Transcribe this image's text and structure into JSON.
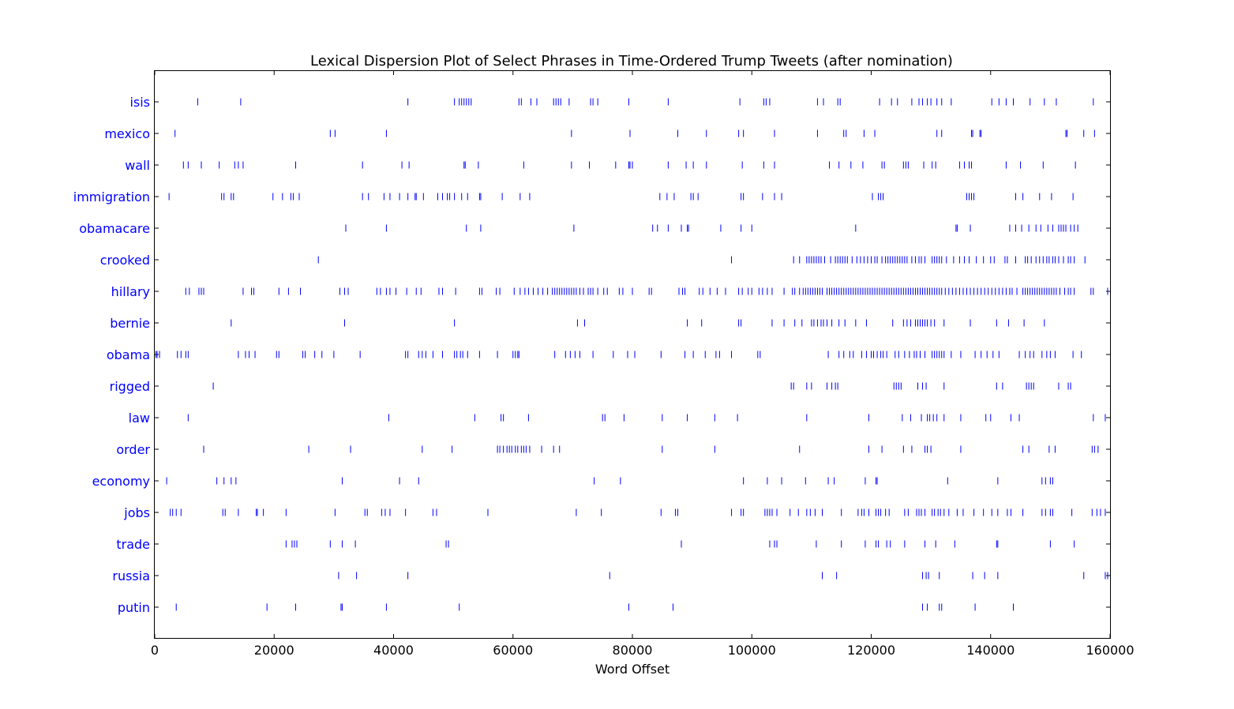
{
  "chart_data": {
    "type": "scatter",
    "title": "Lexical Dispersion Plot of Select Phrases in Time-Ordered Trump Tweets (after nomination)",
    "xlabel": "Word Offset",
    "ylabel": "",
    "xlim": [
      0,
      160000
    ],
    "xticks": [
      "0",
      "20000",
      "40000",
      "60000",
      "80000",
      "100000",
      "120000",
      "140000",
      "160000"
    ],
    "marker": "|",
    "marker_color": "#0000ff",
    "label_color": "#0000ff",
    "grid": false,
    "categories": [
      "isis",
      "mexico",
      "wall",
      "immigration",
      "obamacare",
      "crooked",
      "hillary",
      "bernie",
      "obama",
      "rigged",
      "law",
      "order",
      "economy",
      "jobs",
      "trade",
      "russia",
      "putin"
    ],
    "series": [
      {
        "name": "isis",
        "x": [
          7200,
          14400,
          42400,
          50200,
          51000,
          51400,
          51800,
          52200,
          52600,
          53000,
          61000,
          61400,
          63000,
          64000,
          66800,
          67200,
          67600,
          68000,
          69400,
          73000,
          73400,
          74200,
          79400,
          86000,
          98000,
          102000,
          102400,
          103000,
          111000,
          112000,
          114400,
          114800,
          121400,
          123400,
          124400,
          126800,
          128000,
          128600,
          129400,
          130000,
          131000,
          131800,
          133400,
          140200,
          141400,
          142600,
          143800,
          146600,
          149000,
          151000,
          157200
        ]
      },
      {
        "name": "mexico",
        "x": [
          3400,
          29400,
          30200,
          38800,
          69800,
          79600,
          87600,
          92400,
          97800,
          98600,
          103800,
          111000,
          115400,
          115800,
          118800,
          120600,
          131000,
          131800,
          136800,
          137000,
          138200,
          138400,
          152600,
          152800,
          155600,
          157400
        ]
      },
      {
        "name": "wall",
        "x": [
          4800,
          5600,
          7800,
          10800,
          13400,
          14000,
          14800,
          23600,
          34800,
          41400,
          42600,
          51800,
          52000,
          54200,
          61800,
          69800,
          72800,
          77200,
          79400,
          79600,
          80000,
          86000,
          89000,
          90200,
          92400,
          98400,
          102000,
          103800,
          113000,
          114600,
          116600,
          118600,
          121800,
          122200,
          125400,
          125800,
          126200,
          128800,
          130200,
          130800,
          134800,
          135600,
          136400,
          136800,
          142600,
          145000,
          148800,
          154200
        ]
      },
      {
        "name": "immigration",
        "x": [
          2400,
          11200,
          11600,
          12800,
          13200,
          19800,
          21400,
          22800,
          23200,
          24200,
          34800,
          35800,
          38400,
          39400,
          41000,
          42400,
          43600,
          43800,
          45000,
          47400,
          48200,
          49000,
          49400,
          50200,
          51400,
          52400,
          54400,
          54600,
          58200,
          61200,
          62800,
          84600,
          85800,
          87000,
          89800,
          90200,
          91000,
          98200,
          98600,
          101800,
          103800,
          105000,
          120200,
          121200,
          121600,
          122000,
          136000,
          136400,
          136800,
          137200,
          144200,
          145400,
          148200,
          150200,
          153800
        ]
      },
      {
        "name": "obamacare",
        "x": [
          32000,
          38800,
          52200,
          54600,
          70200,
          83400,
          84200,
          86000,
          88200,
          89200,
          89400,
          94800,
          98200,
          100000,
          117400,
          134200,
          134400,
          136600,
          143200,
          144200,
          145200,
          146400,
          147600,
          148400,
          149600,
          150400,
          151400,
          151800,
          152200,
          152600,
          153400,
          154000,
          154600
        ]
      },
      {
        "name": "crooked",
        "x": [
          27400,
          96600,
          107000,
          108000,
          109200,
          109600,
          110000,
          110400,
          110800,
          111200,
          111600,
          112200,
          113200,
          114000,
          114400,
          114800,
          115200,
          115600,
          116000,
          116800,
          117600,
          118200,
          118800,
          119400,
          120000,
          120600,
          121000,
          121800,
          122400,
          122800,
          123200,
          123600,
          124000,
          124400,
          124800,
          125200,
          125600,
          126000,
          126800,
          127400,
          128000,
          128400,
          129000,
          130200,
          130600,
          131000,
          131400,
          131800,
          132600,
          133800,
          134800,
          135600,
          136400,
          137600,
          138800,
          140000,
          140600,
          142400,
          142800,
          144200,
          145800,
          146200,
          146800,
          147600,
          148200,
          148800,
          149400,
          149800,
          150400,
          150800,
          151400,
          152200,
          153000,
          153400,
          154000,
          155800
        ]
      },
      {
        "name": "hillary",
        "x": [
          5200,
          5800,
          7400,
          7800,
          8200,
          14800,
          16200,
          16600,
          20800,
          22400,
          24400,
          31000,
          31800,
          32400,
          37200,
          37800,
          38800,
          39400,
          40400,
          42200,
          43800,
          44600,
          47600,
          48200,
          50400,
          54400,
          54800,
          57200,
          57800,
          60200,
          61200,
          62000,
          62600,
          63400,
          64200,
          65000,
          65800,
          66600,
          67000,
          67400,
          67800,
          68200,
          68600,
          69000,
          69400,
          69800,
          70200,
          70600,
          71200,
          71800,
          72600,
          73000,
          73400,
          74200,
          75200,
          75800,
          77800,
          78400,
          80000,
          82800,
          83200,
          87800,
          88400,
          88800,
          91200,
          91800,
          93000,
          94200,
          95600,
          97800,
          98400,
          99400,
          100000,
          101200,
          101800,
          102600,
          103400,
          105400,
          106800,
          107200,
          108000,
          108600,
          109000,
          109400,
          109800,
          110200,
          110600,
          111000,
          111400,
          111800,
          112600,
          113000,
          113400,
          113800,
          114200,
          114600,
          115000,
          115400,
          115800,
          116200,
          116600,
          117000,
          117400,
          117800,
          118200,
          118600,
          119000,
          119400,
          119800,
          120200,
          120600,
          121000,
          121400,
          121800,
          122200,
          122600,
          123000,
          123400,
          123800,
          124200,
          124600,
          125000,
          125400,
          125800,
          126200,
          126600,
          127000,
          127400,
          127800,
          128200,
          128600,
          129000,
          129400,
          129800,
          130200,
          130600,
          131000,
          131400,
          131800,
          132400,
          133000,
          133600,
          134200,
          134800,
          135400,
          136000,
          136600,
          137200,
          137800,
          138400,
          139000,
          139600,
          140200,
          140800,
          141400,
          142000,
          142600,
          143200,
          143600,
          144400,
          145400,
          145800,
          146200,
          146600,
          147000,
          147400,
          147800,
          148200,
          148600,
          149000,
          149400,
          149800,
          150200,
          150600,
          151000,
          151600,
          152400,
          153000,
          153400,
          154000,
          156800,
          157200,
          159600
        ]
      },
      {
        "name": "bernie",
        "x": [
          12800,
          31800,
          50200,
          70800,
          72000,
          89200,
          91600,
          97800,
          98200,
          103400,
          105400,
          107200,
          108400,
          110000,
          110400,
          111000,
          111600,
          112000,
          112600,
          113400,
          114600,
          115600,
          117400,
          119200,
          123600,
          125400,
          126000,
          126600,
          127400,
          127800,
          128200,
          128600,
          129000,
          129400,
          130000,
          130600,
          132200,
          136600,
          141000,
          143000,
          145600,
          149000
        ]
      },
      {
        "name": "obama",
        "x": [
          200,
          400,
          800,
          3800,
          4400,
          5200,
          5600,
          14000,
          15200,
          15800,
          16800,
          20400,
          20800,
          24800,
          25200,
          26800,
          28000,
          30000,
          34400,
          42000,
          42400,
          44200,
          44800,
          45400,
          46600,
          48200,
          50200,
          50600,
          51200,
          51600,
          52400,
          54400,
          57400,
          60000,
          60400,
          60800,
          61000,
          67000,
          68800,
          69600,
          70400,
          71200,
          73400,
          76800,
          79200,
          80400,
          84800,
          88800,
          90200,
          92200,
          94000,
          94600,
          96600,
          101000,
          101400,
          112800,
          114600,
          115400,
          116400,
          117000,
          118400,
          119200,
          120000,
          120400,
          121000,
          121600,
          122000,
          122600,
          124000,
          124600,
          125600,
          126400,
          127200,
          127600,
          128200,
          129000,
          130200,
          130600,
          131000,
          131400,
          131800,
          132200,
          133400,
          135000,
          137400,
          138400,
          139400,
          140400,
          141400,
          144800,
          145800,
          146600,
          147200,
          148600,
          149400,
          150000,
          150800,
          153800,
          155200
        ]
      },
      {
        "name": "rigged",
        "x": [
          9800,
          106600,
          107000,
          109200,
          110000,
          112600,
          113400,
          114000,
          114400,
          123800,
          124200,
          124600,
          125000,
          127800,
          128600,
          129200,
          132200,
          141000,
          142000,
          146000,
          146400,
          146800,
          147200,
          151400,
          153000,
          153400
        ]
      },
      {
        "name": "law",
        "x": [
          5600,
          39200,
          53600,
          58000,
          58400,
          62600,
          75000,
          75400,
          78600,
          85000,
          89200,
          93800,
          97600,
          109200,
          119600,
          125200,
          126600,
          128400,
          129400,
          129800,
          130400,
          131000,
          132200,
          135000,
          139200,
          140000,
          143400,
          144800,
          157200,
          159200
        ]
      },
      {
        "name": "order",
        "x": [
          8200,
          25800,
          32800,
          44800,
          49800,
          57400,
          57800,
          58400,
          59000,
          59400,
          59800,
          60400,
          60800,
          61400,
          61800,
          62200,
          62800,
          64800,
          66800,
          67800,
          85000,
          93800,
          108000,
          119600,
          121800,
          125400,
          126800,
          129000,
          129400,
          130000,
          135000,
          145400,
          146400,
          149800,
          150800,
          157000,
          157400,
          158000
        ]
      },
      {
        "name": "economy",
        "x": [
          2000,
          10400,
          11600,
          12800,
          13600,
          31400,
          41000,
          44200,
          73600,
          78000,
          98600,
          102600,
          105000,
          109000,
          112800,
          113800,
          119000,
          120800,
          121000,
          132800,
          141200,
          148600,
          149200,
          150000,
          150400
        ]
      },
      {
        "name": "jobs",
        "x": [
          2600,
          3000,
          3600,
          4400,
          11400,
          11800,
          14000,
          17000,
          17200,
          18200,
          22000,
          30200,
          35200,
          35600,
          38000,
          38600,
          39400,
          42000,
          46600,
          47200,
          55800,
          70600,
          74800,
          84800,
          87200,
          87600,
          96600,
          98200,
          98600,
          102200,
          102600,
          103000,
          103400,
          104200,
          106400,
          107800,
          109200,
          109800,
          110600,
          111800,
          115000,
          117800,
          118400,
          118800,
          119600,
          120800,
          121200,
          121600,
          122400,
          123000,
          125600,
          126200,
          127600,
          128000,
          128400,
          129000,
          130200,
          130600,
          131200,
          131600,
          132200,
          133000,
          134400,
          135400,
          137200,
          138800,
          140200,
          141200,
          142800,
          143400,
          145400,
          148600,
          149200,
          150000,
          150400,
          153600,
          157000,
          157800,
          158400,
          159200
        ]
      },
      {
        "name": "trade",
        "x": [
          22000,
          23000,
          23400,
          23800,
          29400,
          31400,
          33600,
          48800,
          49200,
          88200,
          103000,
          103800,
          104200,
          110800,
          115000,
          119000,
          120800,
          121200,
          122600,
          123200,
          125600,
          129000,
          130800,
          134000,
          141000,
          141200,
          150000,
          154000
        ]
      },
      {
        "name": "russia",
        "x": [
          30800,
          33800,
          42400,
          76200,
          111800,
          114200,
          128600,
          129200,
          129600,
          131400,
          137000,
          139000,
          141200,
          155600,
          159200,
          159600
        ]
      },
      {
        "name": "putin",
        "x": [
          3600,
          18800,
          23600,
          31200,
          31400,
          38800,
          51000,
          79400,
          86800,
          128600,
          129400,
          131400,
          131800,
          137400,
          143800
        ]
      }
    ]
  }
}
